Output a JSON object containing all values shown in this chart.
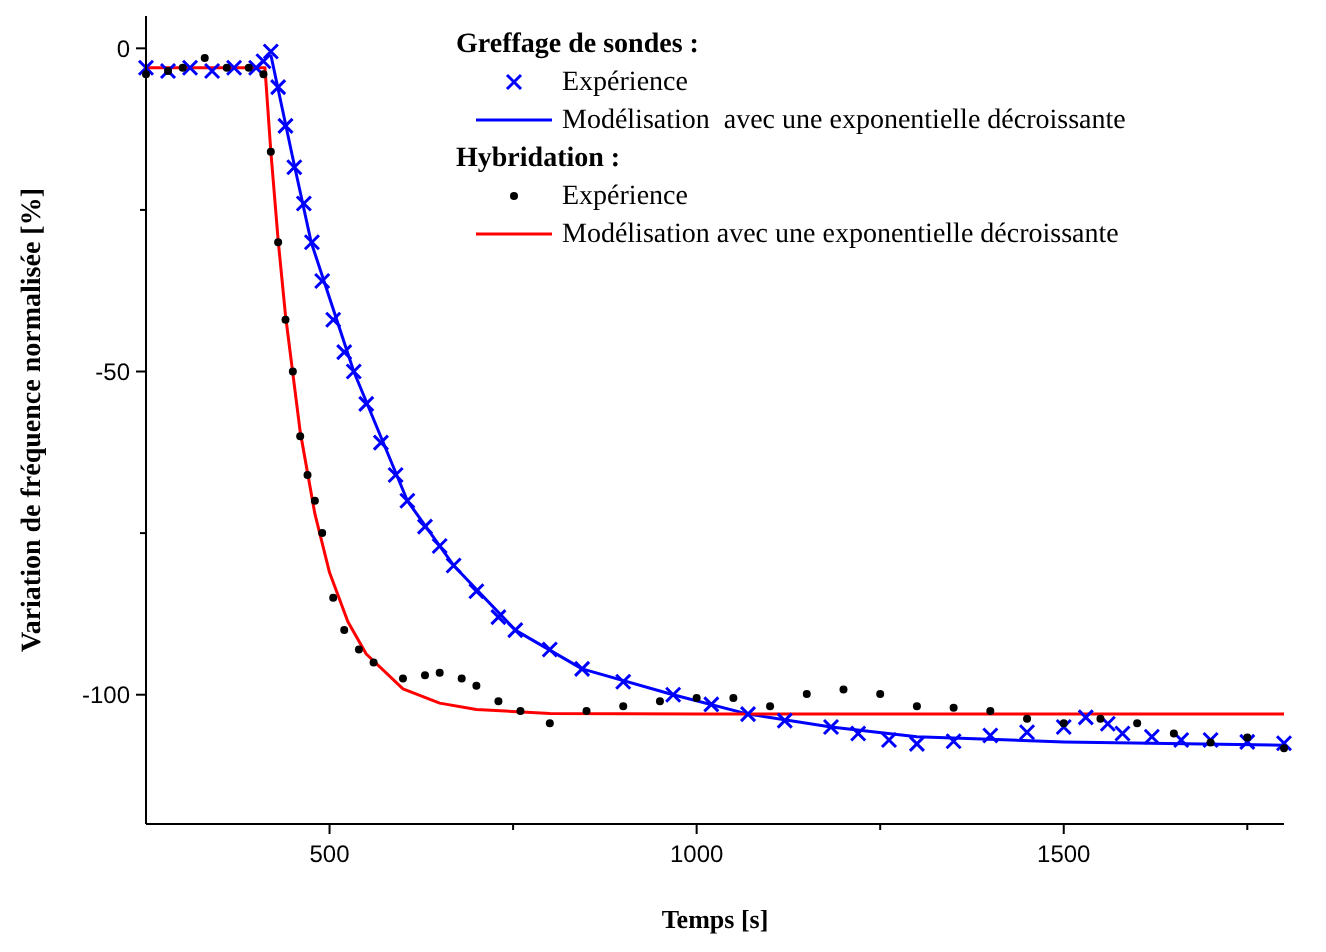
{
  "chart_data": {
    "type": "scatter",
    "xlabel": "Temps [s]",
    "ylabel": "Variation de fréquence normalisée [%]",
    "annotations": [
      "Greffage de sondes :",
      "Hybridation :"
    ],
    "xlim": [
      250,
      1800
    ],
    "ylim": [
      -120,
      5
    ],
    "xticks": [
      500,
      {
        "value": 750,
        "label": null
      },
      1000,
      {
        "value": 1250,
        "label": null
      },
      1500,
      {
        "value": 1750,
        "label": null
      }
    ],
    "yticks": [
      -100,
      {
        "value": -75,
        "label": null
      },
      -50,
      {
        "value": -25,
        "label": null
      },
      0
    ],
    "legend": "top right",
    "grid": false,
    "series": [
      {
        "name": "Expérience",
        "marker": "cross",
        "color": "#0000ff",
        "x": [
          250,
          280,
          310,
          340,
          370,
          400,
          410,
          420,
          430,
          440,
          452,
          465,
          476,
          490,
          505,
          520,
          533,
          550,
          570,
          590,
          606,
          630,
          650,
          669,
          700,
          730,
          753,
          800,
          844,
          900,
          968,
          1020,
          1070,
          1120,
          1183,
          1220,
          1262,
          1300,
          1350,
          1400,
          1450,
          1500,
          1530,
          1560,
          1580,
          1620,
          1660,
          1700,
          1750,
          1800
        ],
        "values": [
          -3,
          -3.5,
          -3,
          -3.5,
          -3,
          -3,
          -2,
          -0.5,
          -6,
          -12,
          -18.4,
          -24,
          -30,
          -36,
          -42,
          -47,
          -50,
          -55,
          -61,
          -66,
          -70,
          -74,
          -77,
          -80,
          -84,
          -88,
          -90,
          -93,
          -96,
          -98,
          -100,
          -101.5,
          -103,
          -104,
          -105,
          -106,
          -107,
          -107.6,
          -107.2,
          -106.3,
          -105.8,
          -105,
          -103.5,
          -104.5,
          -106,
          -106.5,
          -107,
          -107,
          -107.3,
          -107.5
        ]
      },
      {
        "name": "Modélisation  avec une exponentielle décroissante",
        "type": "line",
        "color": "#0000ff",
        "x": [
          420,
          450,
          475,
          533,
          606,
          669,
          753,
          844,
          968,
          1070,
          1183,
          1300,
          1500,
          1800
        ],
        "values": [
          -1,
          -17,
          -30,
          -50,
          -70,
          -80,
          -90,
          -96,
          -100,
          -103,
          -105,
          -106.5,
          -107.3,
          -107.8
        ]
      },
      {
        "name": "Expérience",
        "marker": "circle",
        "color": "#000000",
        "x": [
          250,
          280,
          300,
          330,
          360,
          390,
          410,
          420,
          430,
          440,
          450,
          460,
          470,
          480,
          490,
          505,
          520,
          540,
          560,
          600,
          630,
          650,
          680,
          700,
          730,
          760,
          800,
          850,
          900,
          950,
          1000,
          1050,
          1100,
          1150,
          1200,
          1250,
          1300,
          1350,
          1400,
          1450,
          1500,
          1550,
          1600,
          1650,
          1700,
          1750,
          1800
        ],
        "values": [
          -4,
          -3.5,
          -3,
          -1.5,
          -3,
          -3,
          -4,
          -16,
          -30,
          -42,
          -50,
          -60,
          -66,
          -70,
          -75,
          -85,
          -90,
          -93,
          -95,
          -97.5,
          -97,
          -96.6,
          -97.5,
          -98.6,
          -101,
          -102.5,
          -104.4,
          -102.5,
          -101.8,
          -101,
          -100.5,
          -100.5,
          -101.8,
          -99.9,
          -99.2,
          -99.9,
          -101.8,
          -102,
          -102.5,
          -103.7,
          -104.4,
          -103.7,
          -104.4,
          -106,
          -107.4,
          -106.6,
          -108.3
        ]
      },
      {
        "name": "Modélisation avec une exponentielle décroissante",
        "type": "line",
        "color": "#ff0000",
        "x": [
          250,
          412,
          420,
          430,
          440,
          460,
          480,
          500,
          525,
          550,
          600,
          650,
          700,
          800,
          1000,
          1800
        ],
        "values": [
          -3,
          -3,
          -15.9,
          -29.7,
          -41.3,
          -59.3,
          -72,
          -81.1,
          -88.7,
          -93.7,
          -99.1,
          -101.3,
          -102.3,
          -102.9,
          -103,
          -103
        ]
      }
    ]
  }
}
